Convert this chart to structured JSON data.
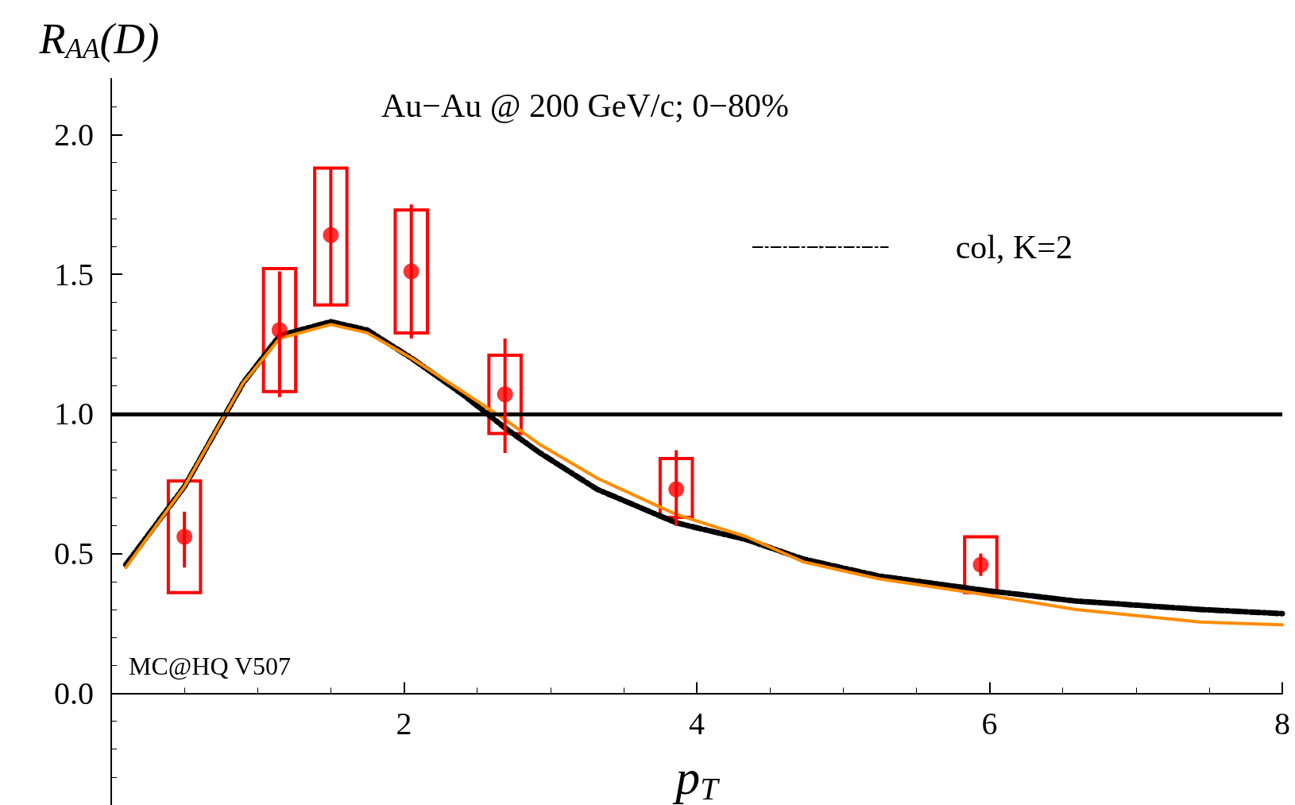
{
  "chart_data": {
    "type": "line",
    "ylabel": "R$_{AA}$(D)",
    "xlabel": "p$_{T}$",
    "annotations": [
      "Au−Au @ 200 GeV/c; 0−80%",
      "MC@HQ V507"
    ],
    "xlim": [
      0,
      8
    ],
    "xticks": [
      2,
      4,
      6,
      8
    ],
    "ylim": [
      -0.4,
      2.2
    ],
    "yticks": [
      {
        "value": 0,
        "label": "0.0"
      },
      {
        "value": 0.5,
        "label": "0.5"
      },
      {
        "value": 1,
        "label": "1.0"
      },
      {
        "value": 1.5,
        "label": "1.5"
      },
      {
        "value": 2,
        "label": "2.0"
      }
    ],
    "grid": false,
    "legend": "top right",
    "ref_lines": [
      {
        "axis": "y",
        "value": 1,
        "color": "#000000",
        "line_style": "solid"
      }
    ],
    "series": [
      {
        "type": "bar",
        "color": "#ff0000",
        "x": [
          0.5,
          1.15,
          1.5,
          2.05,
          2.69,
          3.86,
          5.94
        ],
        "base": [
          0.36,
          1.08,
          1.39,
          1.29,
          0.93,
          0.63,
          0.36
        ],
        "values": [
          0.4,
          0.44,
          0.49,
          0.44,
          0.28,
          0.21,
          0.2
        ]
      },
      {
        "name": "col, K=2",
        "color": "#000000",
        "line_style": "dashed",
        "marker": "none",
        "x": [
          0.1,
          0.5,
          0.9,
          1.15,
          1.5,
          1.75,
          2.05,
          2.4,
          2.69,
          2.93,
          3.32,
          3.86,
          4.34,
          4.73,
          5.24,
          5.94,
          6.59,
          7.44,
          8
        ],
        "values": [
          0.46,
          0.74,
          1.11,
          1.28,
          1.33,
          1.3,
          1.2,
          1.07,
          0.95,
          0.86,
          0.73,
          0.61,
          0.55,
          0.48,
          0.42,
          0.37,
          0.33,
          0.3,
          0.285
        ]
      },
      {
        "color": "#ff8c00",
        "line_style": "solid",
        "marker": "none",
        "x": [
          0.1,
          0.5,
          0.9,
          1.15,
          1.5,
          1.75,
          2.05,
          2.4,
          2.69,
          2.93,
          3.32,
          3.86,
          4.34,
          4.73,
          5.24,
          5.94,
          6.59,
          7.44,
          8
        ],
        "values": [
          0.45,
          0.74,
          1.11,
          1.27,
          1.32,
          1.29,
          1.2,
          1.08,
          0.98,
          0.89,
          0.77,
          0.64,
          0.56,
          0.47,
          0.41,
          0.355,
          0.3,
          0.255,
          0.245
        ]
      },
      {
        "type": "scatter",
        "color": "#ff0000",
        "marker": "circle",
        "x": [
          0.5,
          1.15,
          1.5,
          2.05,
          2.69,
          3.86,
          5.94
        ],
        "values": [
          0.56,
          1.3,
          1.64,
          1.51,
          1.07,
          0.73,
          0.46
        ],
        "errors": [
          [
            0.45,
            0.65
          ],
          [
            1.06,
            1.51
          ],
          [
            1.39,
            1.88
          ],
          [
            1.27,
            1.75
          ],
          [
            0.86,
            1.27
          ],
          [
            0.6,
            0.87
          ],
          [
            0.42,
            0.5
          ]
        ]
      }
    ]
  }
}
